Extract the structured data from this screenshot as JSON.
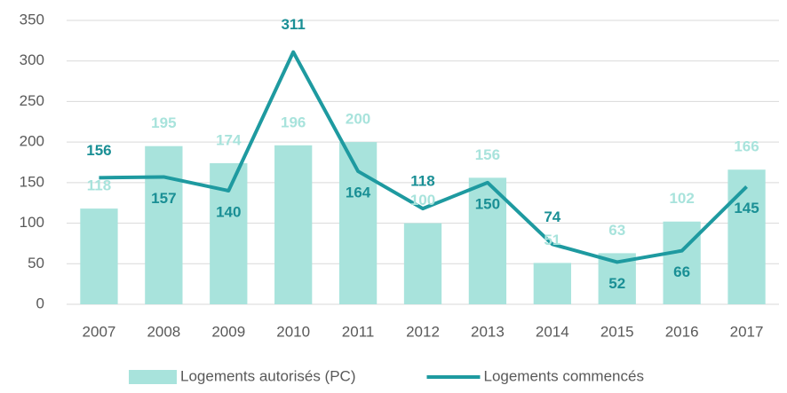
{
  "chart_data": {
    "type": "combo",
    "categories": [
      "2007",
      "2008",
      "2009",
      "2010",
      "2011",
      "2012",
      "2013",
      "2014",
      "2015",
      "2016",
      "2017"
    ],
    "series": [
      {
        "name": "Logements autorisés (PC)",
        "type": "bar",
        "color": "#a8e3dc",
        "label_color": "#a8e3dc",
        "values": [
          118,
          195,
          174,
          196,
          200,
          100,
          156,
          51,
          63,
          102,
          166
        ]
      },
      {
        "name": "Logements commencés",
        "type": "line",
        "color": "#1e9aa0",
        "label_color": "#1a8f95",
        "values": [
          156,
          157,
          140,
          311,
          164,
          118,
          150,
          74,
          52,
          66,
          145
        ]
      }
    ],
    "ylim": [
      0,
      350
    ],
    "yticks": [
      0,
      50,
      100,
      150,
      200,
      250,
      300,
      350
    ],
    "grid": true,
    "legend": "bottom"
  }
}
